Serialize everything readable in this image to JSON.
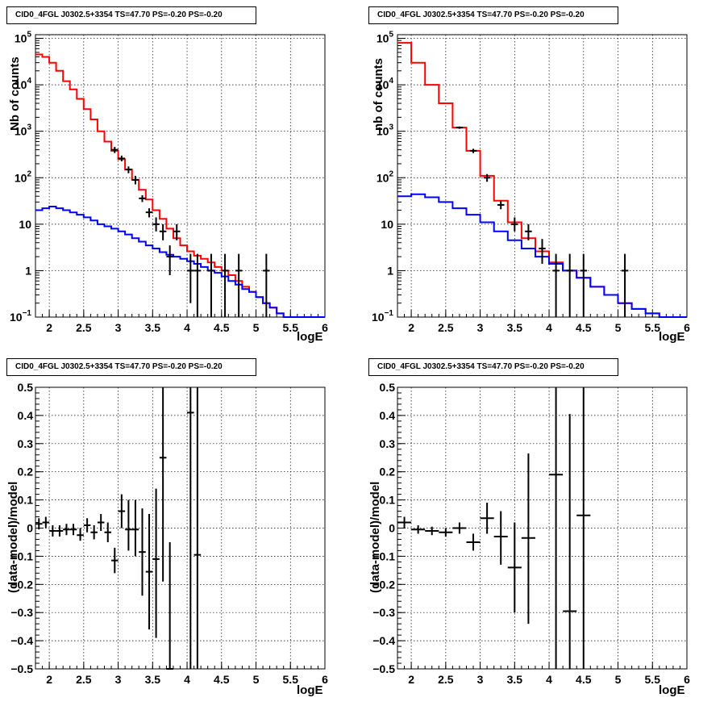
{
  "chart_data": [
    {
      "type": "line",
      "title": "CID0_4FGL J0302.5+3354 TS=47.70 PS=-0.20 PS=-0.20",
      "xlabel": "logE",
      "ylabel": "Nb of counts",
      "xlim": [
        1.8,
        6
      ],
      "ylim": [
        0.1,
        120000
      ],
      "yscale": "log",
      "grid": true,
      "x_ticks": [
        "2",
        "2.5",
        "3",
        "3.5",
        "4",
        "4.5",
        "5",
        "5.5",
        "6"
      ],
      "y_ticks": [
        {
          "v": 0.1,
          "b": "10",
          "e": "−1"
        },
        {
          "v": 1,
          "b": "1",
          "e": ""
        },
        {
          "v": 10,
          "b": "10",
          "e": ""
        },
        {
          "v": 100,
          "b": "10",
          "e": "2"
        },
        {
          "v": 1000,
          "b": "10",
          "e": "3"
        },
        {
          "v": 10000,
          "b": "10",
          "e": "4"
        },
        {
          "v": 100000,
          "b": "10",
          "e": "5"
        }
      ],
      "bin_edges": [
        1.8,
        1.9,
        2.0,
        2.1,
        2.2,
        2.3,
        2.4,
        2.5,
        2.6,
        2.7,
        2.8,
        2.9,
        3.0,
        3.1,
        3.2,
        3.3,
        3.4,
        3.5,
        3.6,
        3.7,
        3.8,
        3.9,
        4.0,
        4.1,
        4.2,
        4.3,
        4.4,
        4.5,
        4.6,
        4.7,
        4.8,
        4.9,
        5.0,
        5.1,
        5.2,
        5.3,
        5.4,
        5.5,
        5.6,
        5.7,
        5.8,
        5.9,
        6.0
      ],
      "series": [
        {
          "name": "",
          "color": "#ff0000",
          "kind": "hist",
          "values": [
            45000,
            40000,
            30000,
            20000,
            12000,
            8000,
            5000,
            3000,
            1800,
            1000,
            600,
            380,
            250,
            150,
            90,
            55,
            34,
            20,
            13,
            8,
            5,
            3.5,
            2.6,
            2.1,
            1.8,
            1.5,
            1.2,
            1.0,
            0.8,
            0.6,
            0.45,
            0.35,
            0.27,
            0.2,
            0.16,
            0.12,
            0.1,
            0.1,
            0.1,
            0.1,
            0.1,
            0.1
          ]
        },
        {
          "name": "",
          "color": "#0000ff",
          "kind": "hist",
          "values": [
            20,
            22,
            24,
            22,
            20,
            18,
            16,
            14,
            12,
            10,
            9,
            8,
            7,
            6,
            5,
            4.2,
            3.5,
            3.0,
            2.5,
            2.2,
            2.0,
            1.8,
            1.6,
            1.4,
            1.2,
            1.0,
            0.9,
            0.75,
            0.6,
            0.5,
            0.4,
            0.35,
            0.27,
            0.2,
            0.16,
            0.12,
            0.1,
            0.1,
            0.1,
            0.1,
            0.1,
            0.1
          ]
        },
        {
          "name": "",
          "color": "#000000",
          "kind": "points",
          "points": [
            {
              "x": 2.95,
              "y": 400,
              "lo": 340,
              "hi": 460
            },
            {
              "x": 3.05,
              "y": 260,
              "lo": 225,
              "hi": 300
            },
            {
              "x": 3.15,
              "y": 150,
              "lo": 125,
              "hi": 175
            },
            {
              "x": 3.25,
              "y": 90,
              "lo": 72,
              "hi": 110
            },
            {
              "x": 3.35,
              "y": 36,
              "lo": 30,
              "hi": 42
            },
            {
              "x": 3.45,
              "y": 18,
              "lo": 14,
              "hi": 22
            },
            {
              "x": 3.55,
              "y": 10,
              "lo": 7,
              "hi": 14
            },
            {
              "x": 3.65,
              "y": 7,
              "lo": 4.5,
              "hi": 10
            },
            {
              "x": 3.75,
              "y": 2,
              "lo": 0.8,
              "hi": 3.5
            },
            {
              "x": 3.85,
              "y": 7,
              "lo": 4.5,
              "hi": 10
            },
            {
              "x": 4.05,
              "y": 1,
              "lo": 0.2,
              "hi": 2.3
            },
            {
              "x": 4.15,
              "y": 1,
              "lo": 0.1,
              "hi": 2.3
            },
            {
              "x": 4.35,
              "y": 1,
              "lo": 0.1,
              "hi": 2.3
            },
            {
              "x": 4.55,
              "y": 1,
              "lo": 0.1,
              "hi": 2.3
            },
            {
              "x": 4.75,
              "y": 1,
              "lo": 0.1,
              "hi": 2.3
            },
            {
              "x": 5.15,
              "y": 1,
              "lo": 0.1,
              "hi": 2.3
            }
          ]
        }
      ]
    },
    {
      "type": "line",
      "title": "CID0_4FGL J0302.5+3354 TS=47.70 PS=-0.20 PS=-0.20",
      "xlabel": "logE",
      "ylabel": "nb of counts",
      "xlim": [
        1.8,
        6
      ],
      "ylim": [
        0.1,
        120000
      ],
      "yscale": "log",
      "grid": true,
      "x_ticks": [
        "2",
        "2.5",
        "3",
        "3.5",
        "4",
        "4.5",
        "5",
        "5.5",
        "6"
      ],
      "y_ticks": [
        {
          "v": 0.1,
          "b": "10",
          "e": "−1"
        },
        {
          "v": 1,
          "b": "1",
          "e": ""
        },
        {
          "v": 10,
          "b": "10",
          "e": ""
        },
        {
          "v": 100,
          "b": "10",
          "e": "2"
        },
        {
          "v": 1000,
          "b": "10",
          "e": "3"
        },
        {
          "v": 10000,
          "b": "10",
          "e": "4"
        },
        {
          "v": 100000,
          "b": "10",
          "e": "5"
        }
      ],
      "bin_edges": [
        1.8,
        2.0,
        2.2,
        2.4,
        2.6,
        2.8,
        3.0,
        3.2,
        3.4,
        3.6,
        3.8,
        4.0,
        4.2,
        4.4,
        4.6,
        4.8,
        5.0,
        5.2,
        5.4,
        5.6,
        5.8,
        6.0
      ],
      "series": [
        {
          "name": "",
          "color": "#ff0000",
          "kind": "hist",
          "values": [
            80000,
            30000,
            10000,
            4000,
            1200,
            380,
            110,
            32,
            11,
            5,
            2.6,
            1.5,
            1.0,
            0.7,
            0.45,
            0.3,
            0.2,
            0.15,
            0.12,
            0.1,
            0.1
          ]
        },
        {
          "name": "",
          "color": "#0000ff",
          "kind": "hist",
          "values": [
            40,
            44,
            38,
            30,
            22,
            16,
            11,
            7,
            4.5,
            3,
            2,
            1.4,
            1.0,
            0.7,
            0.45,
            0.3,
            0.2,
            0.15,
            0.12,
            0.1,
            0.1
          ]
        },
        {
          "name": "",
          "color": "#000000",
          "kind": "points",
          "points": [
            {
              "x": 2.7,
              "y": 1200,
              "lo": 1130,
              "hi": 1270
            },
            {
              "x": 2.9,
              "y": 380,
              "lo": 340,
              "hi": 420
            },
            {
              "x": 3.1,
              "y": 100,
              "lo": 82,
              "hi": 120
            },
            {
              "x": 3.3,
              "y": 26,
              "lo": 21,
              "hi": 32
            },
            {
              "x": 3.5,
              "y": 10,
              "lo": 7,
              "hi": 14
            },
            {
              "x": 3.7,
              "y": 7,
              "lo": 4.5,
              "hi": 10
            },
            {
              "x": 3.9,
              "y": 3,
              "lo": 1.4,
              "hi": 4.8
            },
            {
              "x": 4.1,
              "y": 1,
              "lo": 0.1,
              "hi": 2.3
            },
            {
              "x": 4.3,
              "y": 1,
              "lo": 0.1,
              "hi": 2.3
            },
            {
              "x": 4.5,
              "y": 1,
              "lo": 0.1,
              "hi": 2.3
            },
            {
              "x": 5.1,
              "y": 1,
              "lo": 0.1,
              "hi": 2.3
            }
          ]
        }
      ]
    },
    {
      "type": "scatter",
      "title": "CID0_4FGL J0302.5+3354 TS=47.70 PS=-0.20 PS=-0.20",
      "xlabel": "logE",
      "ylabel": "(data-model)/model",
      "xlim": [
        1.8,
        6
      ],
      "ylim": [
        -0.5,
        0.5
      ],
      "yscale": "linear",
      "grid": true,
      "x_ticks": [
        "2",
        "2.5",
        "3",
        "3.5",
        "4",
        "4.5",
        "5",
        "5.5",
        "6"
      ],
      "y_ticks_linear": [
        "−0.5",
        "−0.4",
        "−0.3",
        "−0.2",
        "−0.1",
        "0",
        "0.1",
        "0.2",
        "0.3",
        "0.4",
        "0.5"
      ],
      "series": [
        {
          "name": "",
          "color": "#000000",
          "kind": "points",
          "points": [
            {
              "x": 1.85,
              "y": 0.015,
              "lo": -0.005,
              "hi": 0.035,
              "w": 0.05
            },
            {
              "x": 1.95,
              "y": 0.02,
              "lo": 0.0,
              "hi": 0.04,
              "w": 0.05
            },
            {
              "x": 2.05,
              "y": -0.01,
              "lo": -0.03,
              "hi": 0.01,
              "w": 0.05
            },
            {
              "x": 2.15,
              "y": -0.01,
              "lo": -0.03,
              "hi": 0.01,
              "w": 0.05
            },
            {
              "x": 2.25,
              "y": -0.005,
              "lo": -0.025,
              "hi": 0.015,
              "w": 0.05
            },
            {
              "x": 2.35,
              "y": -0.005,
              "lo": -0.025,
              "hi": 0.015,
              "w": 0.05
            },
            {
              "x": 2.45,
              "y": -0.025,
              "lo": -0.045,
              "hi": 0.0,
              "w": 0.05
            },
            {
              "x": 2.55,
              "y": 0.01,
              "lo": -0.015,
              "hi": 0.035,
              "w": 0.05
            },
            {
              "x": 2.65,
              "y": -0.015,
              "lo": -0.04,
              "hi": 0.01,
              "w": 0.05
            },
            {
              "x": 2.75,
              "y": 0.02,
              "lo": -0.01,
              "hi": 0.05,
              "w": 0.05
            },
            {
              "x": 2.85,
              "y": -0.015,
              "lo": -0.05,
              "hi": 0.02,
              "w": 0.05
            },
            {
              "x": 2.95,
              "y": -0.115,
              "lo": -0.16,
              "hi": -0.07,
              "w": 0.05
            },
            {
              "x": 3.05,
              "y": 0.06,
              "lo": 0.0,
              "hi": 0.12,
              "w": 0.05
            },
            {
              "x": 3.15,
              "y": -0.005,
              "lo": -0.08,
              "hi": 0.1,
              "w": 0.05
            },
            {
              "x": 3.25,
              "y": -0.005,
              "lo": -0.1,
              "hi": 0.1,
              "w": 0.05
            },
            {
              "x": 3.35,
              "y": -0.085,
              "lo": -0.24,
              "hi": 0.07,
              "w": 0.05
            },
            {
              "x": 3.45,
              "y": -0.155,
              "lo": -0.36,
              "hi": 0.05,
              "w": 0.05
            },
            {
              "x": 3.55,
              "y": -0.11,
              "lo": -0.39,
              "hi": 0.14,
              "w": 0.05
            },
            {
              "x": 3.65,
              "y": 0.25,
              "lo": -0.19,
              "hi": 0.5,
              "w": 0.05
            },
            {
              "x": 3.75,
              "y": -0.5,
              "lo": -0.5,
              "hi": -0.05,
              "w": 0.05
            },
            {
              "x": 4.05,
              "y": 0.41,
              "lo": -0.5,
              "hi": 0.5,
              "w": 0.05
            },
            {
              "x": 4.15,
              "y": -0.095,
              "lo": -0.5,
              "hi": 0.5,
              "w": 0.05
            }
          ]
        }
      ]
    },
    {
      "type": "scatter",
      "title": "CID0_4FGL J0302.5+3354 TS=47.70 PS=-0.20 PS=-0.20",
      "xlabel": "logE",
      "ylabel": "(data-model)/model",
      "xlim": [
        1.8,
        6
      ],
      "ylim": [
        -0.5,
        0.5
      ],
      "yscale": "linear",
      "grid": true,
      "x_ticks": [
        "2",
        "2.5",
        "3",
        "3.5",
        "4",
        "4.5",
        "5",
        "5.5",
        "6"
      ],
      "y_ticks_linear": [
        "−0.5",
        "−0.4",
        "−0.3",
        "−0.2",
        "−0.1",
        "0",
        "0.1",
        "0.2",
        "0.3",
        "0.4",
        "0.5"
      ],
      "series": [
        {
          "name": "",
          "color": "#000000",
          "kind": "points",
          "points": [
            {
              "x": 1.9,
              "y": 0.02,
              "lo": 0.0,
              "hi": 0.04,
              "w": 0.1
            },
            {
              "x": 2.1,
              "y": -0.005,
              "lo": -0.02,
              "hi": 0.01,
              "w": 0.1
            },
            {
              "x": 2.3,
              "y": -0.01,
              "lo": -0.025,
              "hi": 0.005,
              "w": 0.1
            },
            {
              "x": 2.5,
              "y": -0.015,
              "lo": -0.03,
              "hi": 0.0,
              "w": 0.1
            },
            {
              "x": 2.7,
              "y": 0.0,
              "lo": -0.02,
              "hi": 0.02,
              "w": 0.1
            },
            {
              "x": 2.9,
              "y": -0.05,
              "lo": -0.08,
              "hi": -0.02,
              "w": 0.1
            },
            {
              "x": 3.1,
              "y": 0.035,
              "lo": -0.02,
              "hi": 0.09,
              "w": 0.1
            },
            {
              "x": 3.3,
              "y": -0.03,
              "lo": -0.13,
              "hi": 0.06,
              "w": 0.1
            },
            {
              "x": 3.5,
              "y": -0.14,
              "lo": -0.3,
              "hi": 0.02,
              "w": 0.1
            },
            {
              "x": 3.7,
              "y": -0.035,
              "lo": -0.34,
              "hi": 0.265,
              "w": 0.1
            },
            {
              "x": 4.1,
              "y": 0.19,
              "lo": -0.5,
              "hi": 0.5,
              "w": 0.1
            },
            {
              "x": 4.3,
              "y": -0.295,
              "lo": -0.5,
              "hi": 0.405,
              "w": 0.1
            },
            {
              "x": 4.5,
              "y": 0.045,
              "lo": -0.5,
              "hi": 0.5,
              "w": 0.1
            }
          ]
        }
      ]
    }
  ]
}
